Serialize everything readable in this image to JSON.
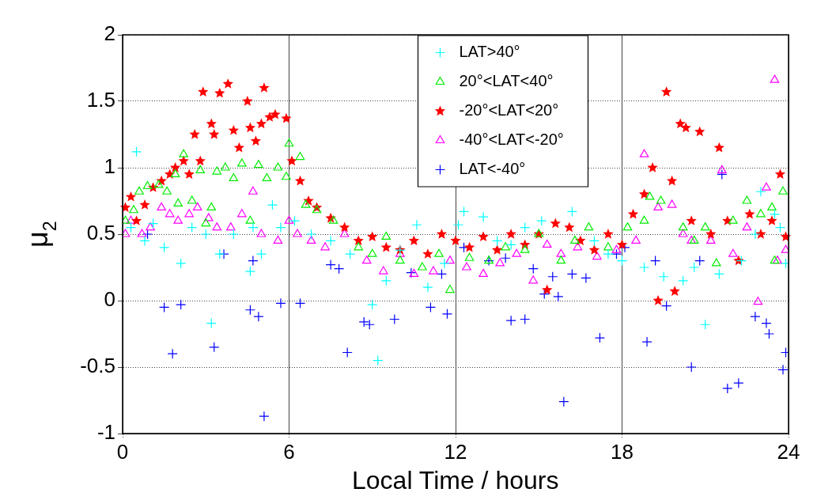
{
  "chart_data": {
    "type": "scatter",
    "xlabel": "Local Time / hours",
    "ylabel": "μ$_{2}$",
    "xlim": [
      0,
      24
    ],
    "xticks": [
      0,
      6,
      12,
      18,
      24
    ],
    "ylim": [
      -1,
      2
    ],
    "yticks": [
      -1,
      -0.5,
      0,
      0.5,
      1,
      1.5,
      2
    ],
    "grid": true,
    "legend": "top",
    "series": [
      {
        "name": "LAT>40°",
        "color": "#00ffff",
        "marker": "cross",
        "x": [
          0.5,
          0.3,
          0.8,
          1.1,
          1.5,
          2.1,
          2.5,
          3.0,
          3.2,
          3.5,
          4.0,
          4.6,
          4.7,
          5.0,
          5.4,
          5.7,
          6.2,
          6.8,
          7.5,
          8.2,
          9.2,
          9.0,
          9.5,
          10.0,
          10.6,
          11.0,
          11.6,
          12.1,
          12.3,
          13.0,
          13.5,
          14.0,
          14.5,
          15.1,
          16.2,
          17.0,
          17.5,
          18.0,
          18.8,
          19.5,
          20.2,
          20.6,
          21.0,
          21.5,
          22.3,
          22.8,
          23.0,
          23.5,
          23.9,
          23.7
        ],
        "values": [
          1.12,
          0.55,
          0.45,
          0.58,
          0.4,
          0.28,
          0.55,
          0.5,
          -0.17,
          0.35,
          0.5,
          0.22,
          0.55,
          0.35,
          0.72,
          0.55,
          0.6,
          0.5,
          0.45,
          0.35,
          -0.45,
          -0.03,
          0.15,
          0.38,
          0.57,
          0.1,
          0.28,
          0.57,
          0.67,
          0.63,
          0.45,
          0.42,
          0.55,
          0.6,
          0.67,
          0.45,
          0.35,
          0.3,
          0.25,
          0.18,
          0.15,
          0.25,
          -0.18,
          0.2,
          0.3,
          0.5,
          0.82,
          0.65,
          0.28,
          0.55
        ]
      },
      {
        "name": "20°<LAT<40°",
        "color": "#00ee00",
        "marker": "triangle",
        "x": [
          0.1,
          0.4,
          0.6,
          0.9,
          1.3,
          1.6,
          1.9,
          2.0,
          2.2,
          2.5,
          2.8,
          3.0,
          3.2,
          3.4,
          3.7,
          4.0,
          4.3,
          4.6,
          4.9,
          5.2,
          5.6,
          5.9,
          6.0,
          6.4,
          6.6,
          7.0,
          7.6,
          8.5,
          9.0,
          9.5,
          10.0,
          10.8,
          11.4,
          11.8,
          12.5,
          13.2,
          13.8,
          14.5,
          15.0,
          15.8,
          16.3,
          16.8,
          17.5,
          18.2,
          18.8,
          19.0,
          19.4,
          20.2,
          20.6,
          21.0,
          21.4,
          22.0,
          22.5,
          23.0,
          23.4,
          23.8,
          23.5
        ],
        "values": [
          0.6,
          0.68,
          0.82,
          0.86,
          0.87,
          0.82,
          0.95,
          0.73,
          1.1,
          0.75,
          0.98,
          0.58,
          0.7,
          0.97,
          1.0,
          0.92,
          1.03,
          0.6,
          1.02,
          0.92,
          1.0,
          0.93,
          1.18,
          1.08,
          0.72,
          0.68,
          0.6,
          0.4,
          0.35,
          0.48,
          0.3,
          0.25,
          0.35,
          0.08,
          0.32,
          0.3,
          0.4,
          0.38,
          0.5,
          0.3,
          0.45,
          0.55,
          0.4,
          0.55,
          0.6,
          0.78,
          0.75,
          0.55,
          0.45,
          0.55,
          0.28,
          0.6,
          0.75,
          0.65,
          0.7,
          0.82,
          0.3
        ]
      },
      {
        "name": "-20°<LAT<20°",
        "color": "#ff0000",
        "marker": "star",
        "x": [
          0.1,
          0.3,
          0.5,
          0.8,
          1.1,
          1.4,
          1.7,
          1.9,
          2.2,
          2.4,
          2.6,
          2.8,
          2.9,
          3.2,
          3.3,
          3.5,
          3.8,
          4.0,
          4.2,
          4.5,
          4.6,
          4.8,
          5.0,
          5.1,
          5.3,
          5.5,
          5.9,
          6.1,
          6.4,
          6.7,
          7.0,
          7.5,
          8.0,
          8.5,
          9.0,
          9.5,
          10.0,
          10.5,
          11.0,
          11.5,
          12.0,
          12.5,
          13.0,
          13.5,
          14.0,
          14.5,
          15.0,
          15.3,
          15.6,
          16.1,
          16.5,
          17.0,
          17.5,
          18.0,
          18.4,
          18.8,
          19.1,
          19.3,
          19.6,
          19.8,
          19.9,
          20.1,
          20.3,
          20.5,
          20.8,
          21.2,
          21.5,
          21.8,
          22.2,
          22.6,
          23.0,
          23.4,
          23.7,
          23.9
        ],
        "values": [
          0.7,
          0.78,
          0.6,
          0.72,
          0.85,
          0.9,
          0.95,
          1.0,
          1.05,
          0.95,
          1.25,
          1.05,
          1.57,
          1.33,
          1.25,
          1.56,
          1.63,
          1.28,
          1.15,
          1.5,
          1.3,
          1.2,
          1.33,
          1.6,
          1.38,
          1.4,
          1.37,
          1.05,
          0.9,
          0.75,
          0.7,
          0.62,
          0.55,
          0.45,
          0.48,
          0.4,
          0.38,
          0.45,
          0.35,
          0.5,
          0.45,
          0.4,
          0.48,
          0.38,
          0.5,
          0.42,
          0.5,
          0.08,
          0.58,
          0.55,
          0.45,
          0.38,
          0.5,
          0.42,
          0.65,
          0.8,
          1.0,
          0.0,
          1.57,
          0.9,
          0.07,
          1.33,
          1.3,
          0.6,
          1.27,
          0.5,
          1.15,
          0.6,
          0.3,
          0.65,
          0.5,
          0.6,
          0.95,
          0.48
        ]
      },
      {
        "name": "-40°<LAT<-20°",
        "color": "#ff00ff",
        "marker": "triangle",
        "x": [
          0.1,
          0.3,
          0.7,
          1.0,
          1.4,
          1.7,
          2.0,
          2.4,
          2.7,
          3.1,
          3.4,
          3.9,
          4.3,
          4.7,
          5.0,
          5.6,
          6.0,
          6.3,
          6.8,
          7.3,
          8.0,
          8.8,
          9.4,
          10.0,
          10.5,
          11.2,
          11.8,
          12.4,
          13.0,
          13.6,
          14.2,
          14.8,
          15.3,
          15.8,
          16.4,
          17.1,
          17.8,
          18.5,
          18.8,
          19.3,
          19.8,
          20.2,
          20.5,
          21.2,
          21.6,
          22.0,
          22.5,
          22.9,
          23.2,
          23.6,
          23.9,
          23.5
        ],
        "values": [
          0.5,
          0.6,
          0.5,
          0.55,
          0.7,
          0.65,
          0.6,
          0.65,
          0.7,
          0.62,
          0.55,
          0.55,
          0.65,
          0.82,
          0.5,
          0.45,
          0.6,
          0.5,
          0.45,
          0.4,
          0.5,
          0.3,
          0.22,
          0.35,
          0.2,
          0.22,
          0.3,
          0.25,
          0.2,
          0.28,
          0.35,
          0.15,
          0.42,
          0.35,
          0.4,
          0.33,
          0.38,
          0.45,
          1.1,
          0.7,
          0.72,
          0.5,
          0.45,
          0.45,
          0.98,
          0.35,
          0.55,
          -0.01,
          0.85,
          0.3,
          0.38,
          1.66
        ]
      },
      {
        "name": "LAT<-40°",
        "color": "#0000ff",
        "marker": "cross",
        "x": [
          0.9,
          1.5,
          1.8,
          2.1,
          3.3,
          3.65,
          4.6,
          4.7,
          4.9,
          5.1,
          5.7,
          6.4,
          7.5,
          7.8,
          8.1,
          8.7,
          8.9,
          9.8,
          10.4,
          11.1,
          11.5,
          11.7,
          12.3,
          13.2,
          13.8,
          14.0,
          14.5,
          14.8,
          15.2,
          15.5,
          15.7,
          15.9,
          16.2,
          16.7,
          17.2,
          17.8,
          18.1,
          18.9,
          19.2,
          19.6,
          20.5,
          20.8,
          21.6,
          21.8,
          22.2,
          22.8,
          23.2,
          23.3,
          23.8,
          23.9
        ],
        "values": [
          0.5,
          -0.05,
          -0.4,
          -0.03,
          -0.35,
          0.35,
          -0.07,
          0.3,
          -0.12,
          -0.87,
          -0.02,
          -0.02,
          0.27,
          0.24,
          -0.39,
          -0.16,
          -0.18,
          -0.14,
          0.21,
          -0.05,
          0.2,
          -0.1,
          0.4,
          0.3,
          0.32,
          -0.15,
          -0.14,
          0.24,
          0.05,
          0.18,
          0.03,
          -0.76,
          0.2,
          0.17,
          -0.28,
          0.35,
          0.4,
          -0.31,
          0.3,
          -0.04,
          -0.5,
          0.3,
          0.95,
          -0.66,
          -0.62,
          -0.12,
          -0.17,
          -0.25,
          -0.52,
          -0.39
        ]
      }
    ]
  }
}
